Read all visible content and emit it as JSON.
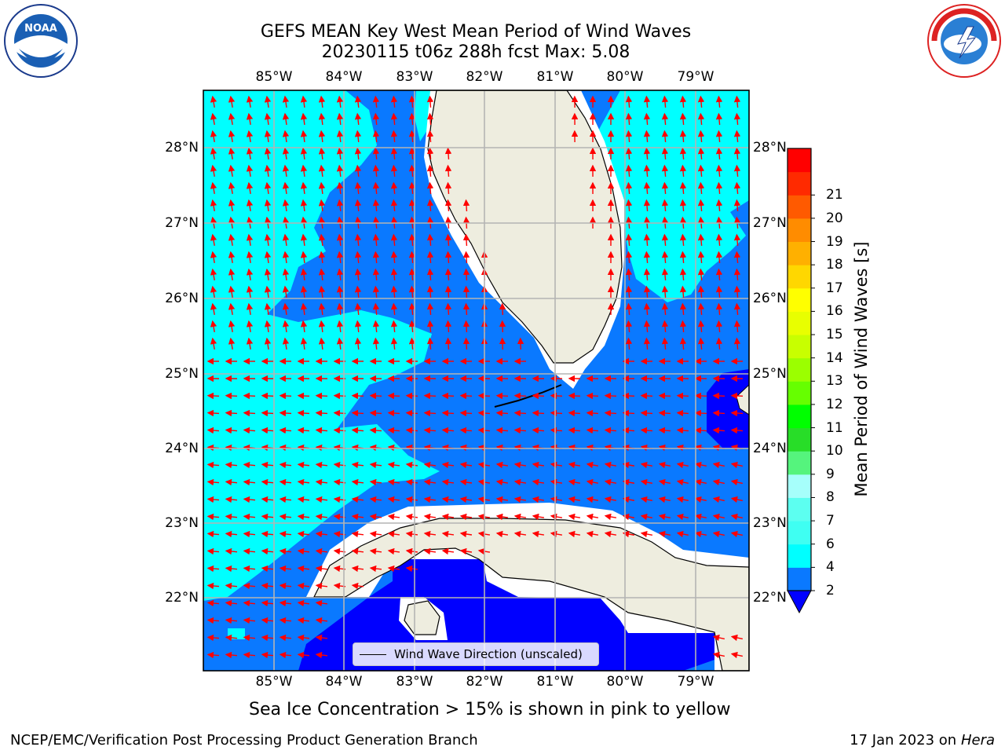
{
  "title_line1": "GEFS MEAN Key West Mean Period of Wind Waves",
  "title_line2": "20230115 t06z 288h fcst   Max: 5.08",
  "lon_labels": [
    "85°W",
    "84°W",
    "83°W",
    "82°W",
    "81°W",
    "80°W",
    "79°W"
  ],
  "lat_labels": [
    "28°N",
    "27°N",
    "26°N",
    "25°N",
    "24°N",
    "23°N",
    "22°N"
  ],
  "legend_label": "Wind Wave Direction (unscaled)",
  "colorbar": {
    "label": "Mean Period of Wind Waves [s]",
    "ticks": [
      "2",
      "4",
      "6",
      "7",
      "8",
      "9",
      "10",
      "11",
      "12",
      "13",
      "14",
      "15",
      "16",
      "17",
      "18",
      "19",
      "20",
      "21"
    ],
    "colors": [
      "#0a79ff",
      "#00ffff",
      "#3ffff2",
      "#5cfff0",
      "#a6fffb",
      "#55f47d",
      "#28dd28",
      "#00ff00",
      "#66ff00",
      "#9bff00",
      "#c8ff00",
      "#e8ff00",
      "#ffff00",
      "#ffd700",
      "#ffb000",
      "#ff8c00",
      "#ff5a00",
      "#ff2a00",
      "#ff0000"
    ],
    "extend_color": "#0000ff"
  },
  "bottom_note": "Sea Ice Concentration > 15% is shown in pink to yellow",
  "footer_left": "NCEP/EMC/Verification Post Processing Product Generation Branch",
  "footer_right_date": "17 Jan 2023 on ",
  "footer_right_machine": "Hera",
  "logos": {
    "left": "noaa-logo",
    "right": "nws-logo"
  },
  "colors": {
    "land": "#eeeddf",
    "wave_2_4": "#0a79ff",
    "wave_4_6": "#00ffff",
    "wave_lt2": "#0000ff",
    "arrow": "#ff0000",
    "grid": "#b4b4b4"
  }
}
